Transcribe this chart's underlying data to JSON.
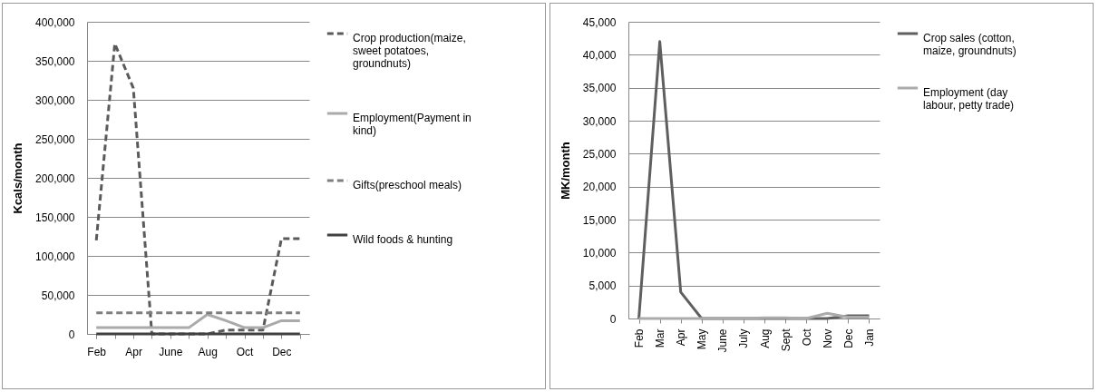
{
  "chart_data": [
    {
      "type": "line",
      "ylabel": "Kcals/month",
      "categories": [
        "Feb",
        null,
        "Apr",
        null,
        "June",
        null,
        "Aug",
        null,
        "Oct",
        null,
        "Dec",
        null
      ],
      "ylim": [
        0,
        400000
      ],
      "yticks": [
        0,
        {
          "value": 50000,
          "label": "50,000"
        },
        {
          "value": 100000,
          "label": "100,000"
        },
        {
          "value": 150000,
          "label": "150,000"
        },
        {
          "value": 200000,
          "label": "200,000"
        },
        {
          "value": 250000,
          "label": "250,000"
        },
        {
          "value": 300000,
          "label": "300,000"
        },
        {
          "value": 350000,
          "label": "350,000"
        },
        {
          "value": 400000,
          "label": "400,000"
        }
      ],
      "grid": "y",
      "legend": "right",
      "series": [
        {
          "name": "Crop production(maize, sweet potatoes, groundnuts)",
          "color": "#5a5a5a",
          "line_style": "dashed",
          "values": [
            120000,
            372000,
            315000,
            0,
            0,
            0,
            0,
            5000,
            5000,
            5000,
            122000,
            122000
          ]
        },
        {
          "name": "Employment(Payment in kind)",
          "color": "#aaaaaa",
          "line_style": "solid",
          "values": [
            8000,
            8000,
            8000,
            8000,
            8000,
            8000,
            25000,
            17000,
            8000,
            8000,
            17000,
            17000
          ]
        },
        {
          "name": "Gifts(preschool meals)",
          "color": "#7f7f7f",
          "line_style": "dashed",
          "values": [
            27000,
            27000,
            27000,
            27000,
            27000,
            27000,
            27000,
            27000,
            27000,
            27000,
            27000,
            27000
          ]
        },
        {
          "name": "Wild foods & hunting",
          "color": "#404040",
          "line_style": "solid",
          "values": [
            0,
            0,
            0,
            0,
            0,
            0,
            0,
            0,
            0,
            0,
            0,
            0
          ]
        }
      ]
    },
    {
      "type": "line",
      "ylabel": "MK/month",
      "categories": [
        "Feb",
        "Mar",
        "Apr",
        "May",
        "June",
        "July",
        "Aug",
        "Sept",
        "Oct",
        "Nov",
        "Dec",
        "Jan"
      ],
      "ylim": [
        0,
        45000
      ],
      "yticks": [
        0,
        {
          "value": 5000,
          "label": "5,000"
        },
        {
          "value": 10000,
          "label": "10,000"
        },
        {
          "value": 15000,
          "label": "15,000"
        },
        {
          "value": 20000,
          "label": "20,000"
        },
        {
          "value": 25000,
          "label": "25,000"
        },
        {
          "value": 30000,
          "label": "30,000"
        },
        {
          "value": 35000,
          "label": "35,000"
        },
        {
          "value": 40000,
          "label": "40,000"
        },
        {
          "value": 45000,
          "label": "45,000"
        }
      ],
      "grid": "y",
      "legend": "right",
      "series": [
        {
          "name": "Crop sales (cotton, maize, groundnuts)",
          "color": "#5f5f5f",
          "line_style": "solid",
          "values": [
            0,
            42000,
            4000,
            0,
            0,
            0,
            0,
            0,
            0,
            0,
            400,
            400
          ]
        },
        {
          "name": "Employment (day labour, petty trade)",
          "color": "#ababab",
          "line_style": "solid",
          "values": [
            0,
            0,
            0,
            0,
            0,
            0,
            100,
            100,
            0,
            800,
            200,
            200
          ]
        }
      ]
    }
  ]
}
